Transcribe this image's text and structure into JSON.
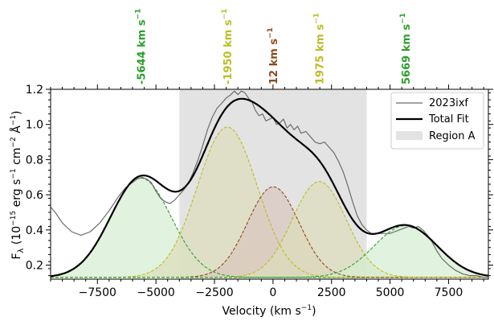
{
  "chart_data": {
    "type": "line",
    "xlabel": "Velocity (km s",
    "xlabel_sup": "−1",
    "xlabel_end": ")",
    "ylabel_parts": [
      "F",
      "λ",
      " (10",
      "−15",
      " erg s",
      "−1",
      " cm",
      "−2",
      " Å",
      "−1",
      ")"
    ],
    "xlim": [
      -9500,
      9200
    ],
    "ylim": [
      0.12,
      1.2
    ],
    "xticks": [
      -7500,
      -5000,
      -2500,
      0,
      2500,
      5000,
      7500
    ],
    "xtick_labels": [
      "−7500",
      "−5000",
      "−2500",
      "0",
      "2500",
      "5000",
      "7500"
    ],
    "yticks": [
      0.2,
      0.4,
      0.6,
      0.8,
      1.0,
      1.2
    ],
    "ytick_labels": [
      "0.2",
      "0.4",
      "0.6",
      "0.8",
      "1.0",
      "1.2"
    ],
    "region": {
      "name": "Region A",
      "x_start": -4000,
      "x_end": 4000,
      "color": "#e3e3e3"
    },
    "baseline": 0.13,
    "components": [
      {
        "center": -5644,
        "amplitude": 0.565,
        "sigma": 1300,
        "color": "#2ca02c",
        "fill": "#d4ecd0",
        "label_text": "-5644 km s",
        "label_sup": "−1"
      },
      {
        "center": -1950,
        "amplitude": 0.855,
        "sigma": 1280,
        "color": "#bcbd22",
        "fill": "#ddddba",
        "label_text": "-1950 km s",
        "label_sup": "−1"
      },
      {
        "center": 12,
        "amplitude": 0.515,
        "sigma": 1100,
        "color": "#8c4a1e",
        "fill": "#d9c6bf",
        "label_text": "12 km s",
        "label_sup": "−1"
      },
      {
        "center": 1975,
        "amplitude": 0.545,
        "sigma": 1150,
        "color": "#bcbd22",
        "fill": "#ddddba",
        "label_text": "1975 km s",
        "label_sup": "−1"
      },
      {
        "center": 5669,
        "amplitude": 0.295,
        "sigma": 1350,
        "color": "#2ca02c",
        "fill": "#d4ecd0",
        "label_text": "5669 km s",
        "label_sup": "−1"
      }
    ],
    "series": [
      {
        "name": "2023ixf",
        "color": "#6b6b6b",
        "x": [
          -9500,
          -9300,
          -9000,
          -8600,
          -8200,
          -7800,
          -7400,
          -7000,
          -6600,
          -6300,
          -6000,
          -5800,
          -5600,
          -5400,
          -5200,
          -5000,
          -4800,
          -4600,
          -4400,
          -4200,
          -4000,
          -3800,
          -3600,
          -3400,
          -3200,
          -3000,
          -2800,
          -2600,
          -2400,
          -2200,
          -2000,
          -1800,
          -1650,
          -1500,
          -1350,
          -1200,
          -1050,
          -900,
          -750,
          -600,
          -450,
          -300,
          -150,
          0,
          150,
          300,
          450,
          600,
          750,
          900,
          1050,
          1200,
          1400,
          1600,
          1800,
          2000,
          2200,
          2400,
          2600,
          2800,
          3000,
          3200,
          3400,
          3600,
          3800,
          4000,
          4200,
          4400,
          4600,
          4800,
          5000,
          5200,
          5400,
          5600,
          5800,
          6000,
          6200,
          6400,
          6600,
          6800,
          7000,
          7200,
          7500,
          7800,
          8100,
          8400,
          8700,
          9000,
          9200
        ],
        "y": [
          0.53,
          0.5,
          0.44,
          0.39,
          0.37,
          0.39,
          0.44,
          0.51,
          0.59,
          0.64,
          0.67,
          0.69,
          0.7,
          0.69,
          0.67,
          0.62,
          0.58,
          0.56,
          0.55,
          0.57,
          0.6,
          0.63,
          0.67,
          0.73,
          0.8,
          0.88,
          0.97,
          1.04,
          1.09,
          1.12,
          1.15,
          1.17,
          1.19,
          1.17,
          1.19,
          1.18,
          1.15,
          1.13,
          1.08,
          1.05,
          1.06,
          1.02,
          1.03,
          1.04,
          1.0,
          1.01,
          1.03,
          0.98,
          1.0,
          0.97,
          0.99,
          0.95,
          0.96,
          0.93,
          0.9,
          0.89,
          0.9,
          0.87,
          0.84,
          0.79,
          0.73,
          0.65,
          0.56,
          0.48,
          0.43,
          0.4,
          0.38,
          0.38,
          0.38,
          0.38,
          0.38,
          0.39,
          0.4,
          0.41,
          0.42,
          0.41,
          0.42,
          0.4,
          0.37,
          0.33,
          0.28,
          0.24,
          0.2,
          0.17,
          0.15,
          0.14,
          0.14,
          0.13,
          0.13
        ]
      },
      {
        "name": "Total Fit",
        "color": "#000000",
        "from_components": true
      }
    ],
    "legend": {
      "placement": "top-right",
      "entries": [
        "2023ixf",
        "Total Fit",
        "Region A"
      ]
    },
    "grid": false
  }
}
